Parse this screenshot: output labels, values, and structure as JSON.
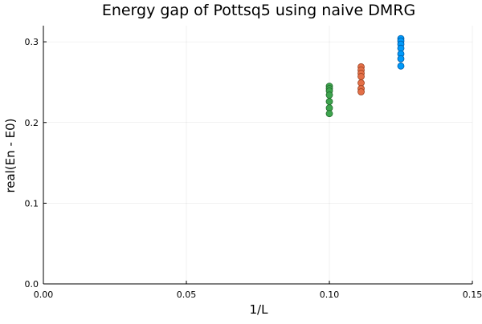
{
  "chart_data": {
    "type": "scatter",
    "title": "Energy gap of Pottsq5 using naive DMRG",
    "xlabel": "1/L",
    "ylabel": "real(En - E0)",
    "xlim": [
      0.0,
      0.15
    ],
    "ylim": [
      0.0,
      0.32
    ],
    "grid": true,
    "legend": "none",
    "x_ticks": [
      {
        "value": 0.0,
        "label": "0.00"
      },
      {
        "value": 0.05,
        "label": "0.05"
      },
      {
        "value": 0.1,
        "label": "0.10"
      },
      {
        "value": 0.15,
        "label": "0.15"
      }
    ],
    "y_ticks": [
      {
        "value": 0.0,
        "label": "0.0"
      },
      {
        "value": 0.1,
        "label": "0.1"
      },
      {
        "value": 0.2,
        "label": "0.2"
      },
      {
        "value": 0.3,
        "label": "0.3"
      }
    ],
    "series": [
      {
        "color": "#009AFA",
        "stroke": "#0058a0",
        "points": [
          {
            "x": 0.125,
            "y": 0.304
          },
          {
            "x": 0.125,
            "y": 0.301
          },
          {
            "x": 0.125,
            "y": 0.297
          },
          {
            "x": 0.125,
            "y": 0.292
          },
          {
            "x": 0.125,
            "y": 0.285
          },
          {
            "x": 0.125,
            "y": 0.279
          },
          {
            "x": 0.125,
            "y": 0.27
          }
        ]
      },
      {
        "color": "#E36F47",
        "stroke": "#9a4020",
        "points": [
          {
            "x": 0.1111,
            "y": 0.269
          },
          {
            "x": 0.1111,
            "y": 0.265
          },
          {
            "x": 0.1111,
            "y": 0.261
          },
          {
            "x": 0.1111,
            "y": 0.257
          },
          {
            "x": 0.1111,
            "y": 0.249
          },
          {
            "x": 0.1111,
            "y": 0.242
          },
          {
            "x": 0.1111,
            "y": 0.238
          }
        ]
      },
      {
        "color": "#3EA44E",
        "stroke": "#1f6a2b",
        "points": [
          {
            "x": 0.1,
            "y": 0.245
          },
          {
            "x": 0.1,
            "y": 0.242
          },
          {
            "x": 0.1,
            "y": 0.239
          },
          {
            "x": 0.1,
            "y": 0.234
          },
          {
            "x": 0.1,
            "y": 0.226
          },
          {
            "x": 0.1,
            "y": 0.218
          },
          {
            "x": 0.1,
            "y": 0.211
          }
        ]
      }
    ]
  }
}
